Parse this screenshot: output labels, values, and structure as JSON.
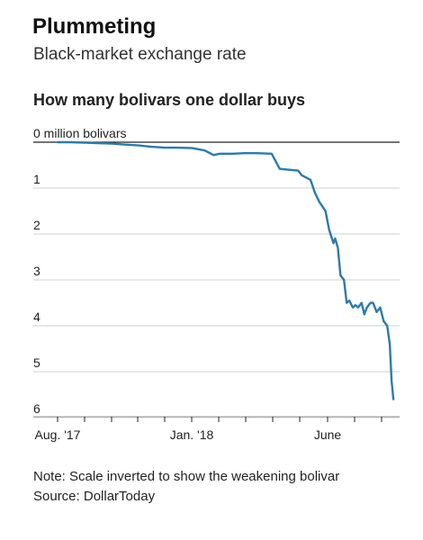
{
  "header": {
    "title": "Plummeting",
    "subtitle": "Black-market exchange rate"
  },
  "chart_data": {
    "type": "line",
    "title": "How many bolivars one dollar buys",
    "y_unit_label": "million bolivars",
    "y_tick_labels": [
      "0 million bolivars",
      "1",
      "2",
      "3",
      "4",
      "5",
      "6"
    ],
    "y_ticks": [
      0,
      1,
      2,
      3,
      4,
      5,
      6
    ],
    "ylim": [
      0,
      6
    ],
    "y_inverted": true,
    "x_tick_labels": [
      "Aug. '17",
      "Jan. '18",
      "June"
    ],
    "xlim": [
      "2017-08-01",
      "2018-08-20"
    ],
    "grid": true,
    "color": "#2b7bab",
    "series": [
      {
        "x": [
          "2017-08-01",
          "2017-08-15",
          "2017-09-01",
          "2017-09-15",
          "2017-10-01",
          "2017-10-15",
          "2017-11-01",
          "2017-11-15",
          "2017-12-01",
          "2017-12-15",
          "2018-01-01",
          "2018-01-15",
          "2018-01-25",
          "2018-02-01",
          "2018-02-15",
          "2018-03-01",
          "2018-03-15",
          "2018-04-01",
          "2018-04-05",
          "2018-04-10",
          "2018-04-20",
          "2018-05-01",
          "2018-05-05",
          "2018-05-15",
          "2018-05-20",
          "2018-05-25",
          "2018-06-01",
          "2018-06-05",
          "2018-06-10",
          "2018-06-12",
          "2018-06-15",
          "2018-06-18",
          "2018-06-22",
          "2018-06-25",
          "2018-06-28",
          "2018-07-02",
          "2018-07-05",
          "2018-07-08",
          "2018-07-12",
          "2018-07-15",
          "2018-07-18",
          "2018-07-22",
          "2018-07-25",
          "2018-07-29",
          "2018-08-02",
          "2018-08-06",
          "2018-08-10",
          "2018-08-13",
          "2018-08-15",
          "2018-08-17"
        ],
        "y": [
          0.0,
          0.0,
          0.01,
          0.02,
          0.03,
          0.05,
          0.07,
          0.1,
          0.12,
          0.12,
          0.13,
          0.18,
          0.28,
          0.25,
          0.25,
          0.24,
          0.24,
          0.25,
          0.4,
          0.58,
          0.6,
          0.62,
          0.72,
          0.82,
          1.1,
          1.3,
          1.5,
          1.9,
          2.2,
          2.1,
          2.3,
          2.9,
          3.0,
          3.5,
          3.45,
          3.6,
          3.55,
          3.6,
          3.5,
          3.75,
          3.6,
          3.5,
          3.5,
          3.7,
          3.6,
          3.9,
          4.0,
          4.4,
          5.2,
          5.6
        ]
      }
    ]
  },
  "notes": {
    "note": "Note: Scale inverted to show the weakening bolivar",
    "source": "Source: DollarToday"
  }
}
